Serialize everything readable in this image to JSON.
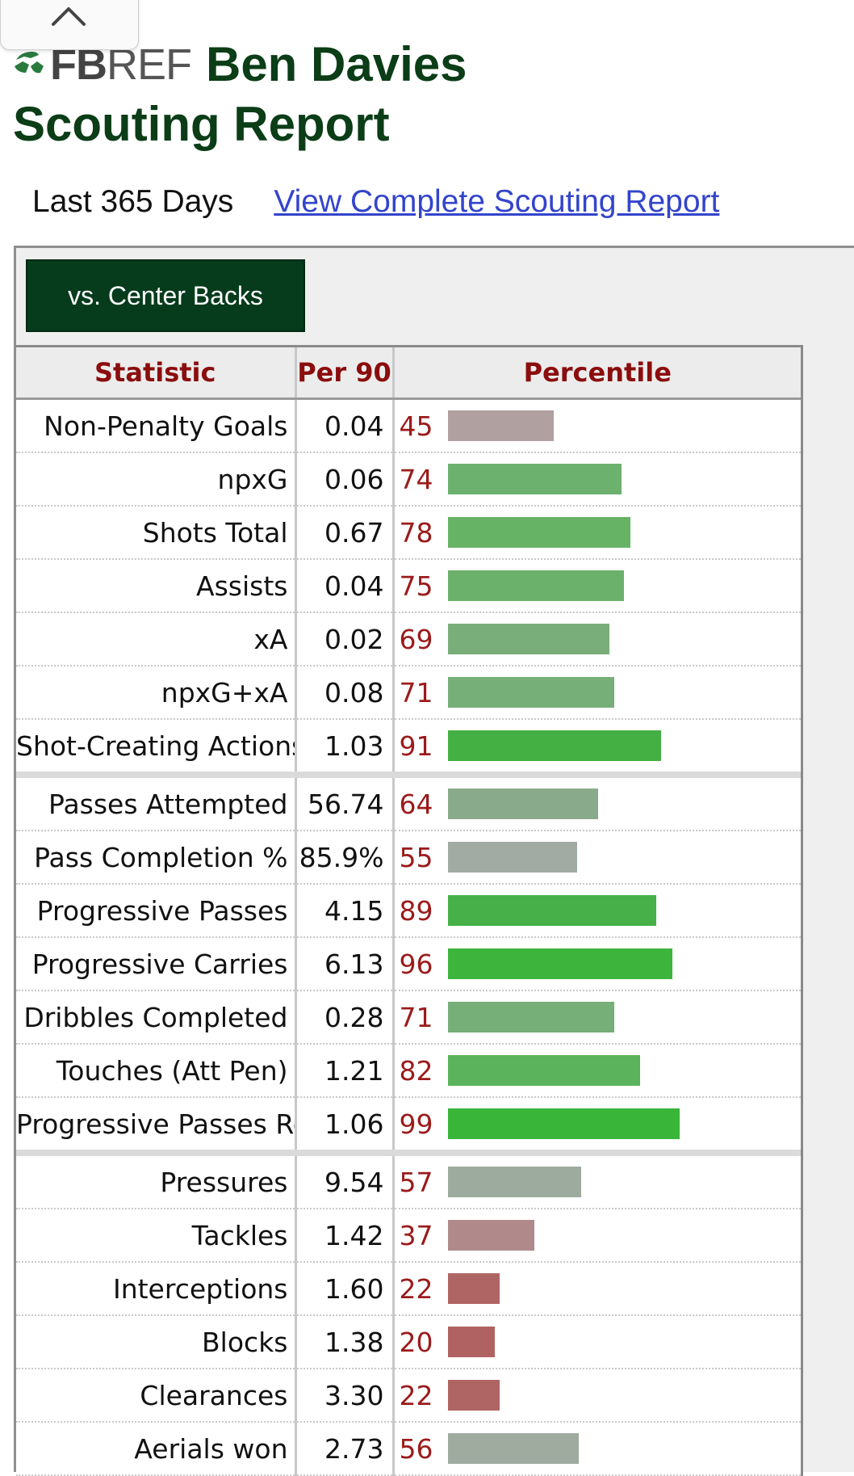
{
  "header": {
    "logo_f": "FB",
    "logo_ref": "REF",
    "title_line1": "Ben Davies",
    "title_line2": "Scouting Report"
  },
  "subheader": {
    "period": "Last 365 Days",
    "link": "View Complete Scouting Report"
  },
  "filter": {
    "label": "vs. Center Backs"
  },
  "table": {
    "columns": [
      "Statistic",
      "Per 90",
      "Percentile"
    ],
    "groups": [
      [
        {
          "stat": "Non-Penalty Goals",
          "per90": "0.04",
          "percentile": 45,
          "color": "#b0a09f"
        },
        {
          "stat": "npxG",
          "per90": "0.06",
          "percentile": 74,
          "color": "#6db16e"
        },
        {
          "stat": "Shots Total",
          "per90": "0.67",
          "percentile": 78,
          "color": "#66b366"
        },
        {
          "stat": "Assists",
          "per90": "0.04",
          "percentile": 75,
          "color": "#6cb16b"
        },
        {
          "stat": "xA",
          "per90": "0.02",
          "percentile": 69,
          "color": "#79ae7a"
        },
        {
          "stat": "npxG+xA",
          "per90": "0.08",
          "percentile": 71,
          "color": "#76af77"
        },
        {
          "stat": "Shot-Creating Actions",
          "per90": "1.03",
          "percentile": 91,
          "color": "#44b044"
        }
      ],
      [
        {
          "stat": "Passes Attempted",
          "per90": "56.74",
          "percentile": 64,
          "color": "#8aab8b"
        },
        {
          "stat": "Pass Completion %",
          "per90": "85.9%",
          "percentile": 55,
          "color": "#a2aba3"
        },
        {
          "stat": "Progressive Passes",
          "per90": "4.15",
          "percentile": 89,
          "color": "#48b048"
        },
        {
          "stat": "Progressive Carries",
          "per90": "6.13",
          "percentile": 96,
          "color": "#3db53d"
        },
        {
          "stat": "Dribbles Completed",
          "per90": "0.28",
          "percentile": 71,
          "color": "#76af77"
        },
        {
          "stat": "Touches (Att Pen)",
          "per90": "1.21",
          "percentile": 82,
          "color": "#5bb35b"
        },
        {
          "stat": "Progressive Passes Rec",
          "per90": "1.06",
          "percentile": 99,
          "color": "#39b639"
        }
      ],
      [
        {
          "stat": "Pressures",
          "per90": "9.54",
          "percentile": 57,
          "color": "#9cab9d"
        },
        {
          "stat": "Tackles",
          "per90": "1.42",
          "percentile": 37,
          "color": "#b08a8a"
        },
        {
          "stat": "Interceptions",
          "per90": "1.60",
          "percentile": 22,
          "color": "#b06565"
        },
        {
          "stat": "Blocks",
          "per90": "1.38",
          "percentile": 20,
          "color": "#b06262"
        },
        {
          "stat": "Clearances",
          "per90": "3.30",
          "percentile": 22,
          "color": "#b06565"
        },
        {
          "stat": "Aerials won",
          "per90": "2.73",
          "percentile": 56,
          "color": "#9fab9f"
        }
      ]
    ]
  }
}
